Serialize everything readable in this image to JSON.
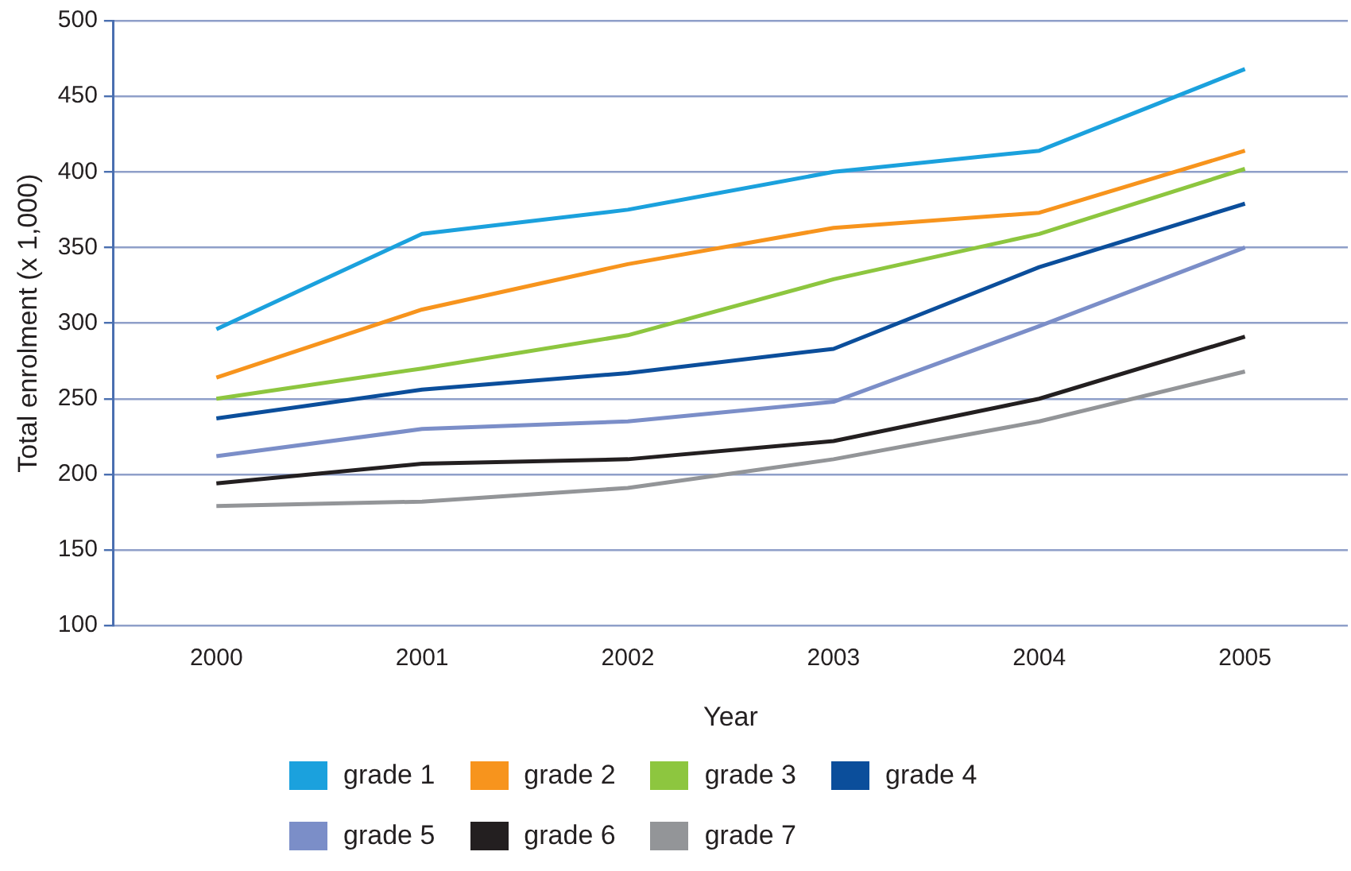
{
  "chart_data": {
    "type": "line",
    "xlabel": "Year",
    "ylabel": "Total enrolment (x 1,000)",
    "categories": [
      "2000",
      "2001",
      "2002",
      "2003",
      "2004",
      "2005"
    ],
    "series": [
      {
        "name": "grade 1",
        "color": "#1ba1dd",
        "values": [
          296,
          359,
          375,
          400,
          414,
          468
        ]
      },
      {
        "name": "grade 2",
        "color": "#f7941d",
        "values": [
          264,
          309,
          339,
          363,
          373,
          414
        ]
      },
      {
        "name": "grade 3",
        "color": "#8dc63f",
        "values": [
          250,
          270,
          292,
          329,
          359,
          402
        ]
      },
      {
        "name": "grade 4",
        "color": "#0b4e9b",
        "values": [
          237,
          256,
          267,
          283,
          337,
          379
        ]
      },
      {
        "name": "grade 5",
        "color": "#7b8ec8",
        "values": [
          212,
          230,
          235,
          248,
          298,
          350
        ]
      },
      {
        "name": "grade 6",
        "color": "#231f20",
        "values": [
          194,
          207,
          210,
          222,
          250,
          291
        ]
      },
      {
        "name": "grade 7",
        "color": "#939598",
        "values": [
          179,
          182,
          191,
          210,
          235,
          268
        ]
      }
    ],
    "ylim": [
      100,
      500
    ],
    "yticks": [
      100,
      150,
      200,
      250,
      300,
      350,
      400,
      450,
      500
    ],
    "grid": "y",
    "legend": "bottom",
    "marker": "none",
    "line_style": "solid"
  }
}
